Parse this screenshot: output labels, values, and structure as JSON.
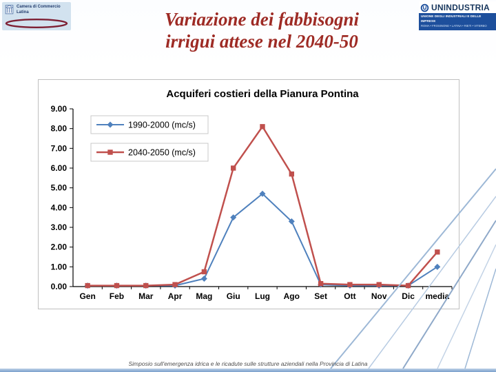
{
  "slide": {
    "title_line1": "Variazione dei fabbisogni",
    "title_line2": "irrigui attese nel 2040-50",
    "title_color": "#9E2B25",
    "footer": "Simposio sull'emergenza idrica e le ricadute sulle strutture aziendali nella Provincia di Latina"
  },
  "logos": {
    "camera_commercio": {
      "line1": "Camera di Commercio",
      "line2": "Latina"
    },
    "unindustria": {
      "name": "UNINDUSTRIA",
      "subtitle": "UNIONE DEGLI INDUSTRIALI E DELLE IMPRESE",
      "cities": "ROMA • FROSINONE • LATINA • RIETI • VITERBO",
      "bar_color": "#1D4F9C"
    }
  },
  "chart_data": {
    "type": "line",
    "title": "Acquiferi costieri della Pianura Pontina",
    "categories": [
      "Gen",
      "Feb",
      "Mar",
      "Apr",
      "Mag",
      "Giu",
      "Lug",
      "Ago",
      "Set",
      "Ott",
      "Nov",
      "Dic",
      "media"
    ],
    "series": [
      {
        "name": "1990-2000 (mc/s)",
        "color": "#4F81BD",
        "marker": "diamond",
        "line_width": 2,
        "values": [
          0.05,
          0.05,
          0.05,
          0.05,
          0.4,
          3.5,
          4.7,
          3.3,
          0.1,
          0.05,
          0.05,
          0.05,
          1.0
        ]
      },
      {
        "name": "2040-2050 (mc/s)",
        "color": "#C0504D",
        "marker": "square",
        "line_width": 2.5,
        "values": [
          0.05,
          0.05,
          0.05,
          0.1,
          0.75,
          6.0,
          8.1,
          5.7,
          0.15,
          0.1,
          0.1,
          0.05,
          1.75
        ]
      }
    ],
    "xlabel": "",
    "ylabel": "",
    "ylim": [
      0,
      9
    ],
    "ytick_step": 1,
    "ytick_format": "0.00",
    "grid": false,
    "legend_position": "top-left-inside"
  }
}
